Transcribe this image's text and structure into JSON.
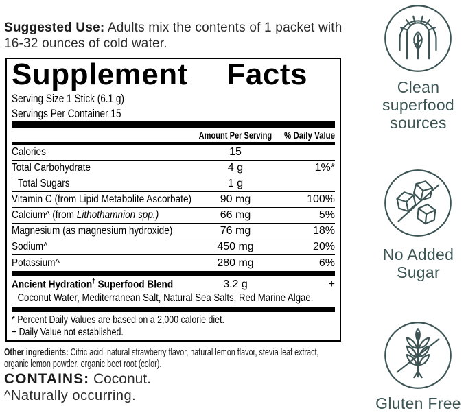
{
  "suggested_use": {
    "label": "Suggested Use:",
    "text": " Adults mix the contents of 1 packet with 16-32 ounces of cold water."
  },
  "facts": {
    "title": "Supplement Facts",
    "serving_size": "Serving Size 1 Stick (6.1 g)",
    "servings_per_container": "Servings Per Container 15",
    "col_amount": "Amount Per Serving",
    "col_dv": "% Daily Value",
    "rows": [
      {
        "name": [
          {
            "t": "Calories"
          }
        ],
        "amount": "15",
        "dv": ""
      },
      {
        "name": [
          {
            "t": "Total Carbohydrate"
          }
        ],
        "amount": "4 g",
        "dv": "1%*"
      },
      {
        "name": [
          {
            "t": "Total Sugars"
          }
        ],
        "amount": "1 g",
        "dv": "",
        "indent": true
      },
      {
        "name": [
          {
            "t": "Vitamin C (from Lipid Metabolite Ascorbate)"
          }
        ],
        "amount": "90 mg",
        "dv": "100%"
      },
      {
        "name": [
          {
            "t": "Calcium^ (from "
          },
          {
            "t": "Lithothamnion spp.)",
            "italic": true
          }
        ],
        "amount": "66 mg",
        "dv": "5%"
      },
      {
        "name": [
          {
            "t": "Magnesium (as magnesium hydroxide)"
          }
        ],
        "amount": "76 mg",
        "dv": "18%"
      },
      {
        "name": [
          {
            "t": "Sodium^"
          }
        ],
        "amount": "450 mg",
        "dv": "20%"
      },
      {
        "name": [
          {
            "t": "Potassium^"
          }
        ],
        "amount": "280 mg",
        "dv": "6%"
      }
    ],
    "blend": {
      "name": [
        {
          "t": "Ancient Hydration"
        },
        {
          "t": "†",
          "sup": true
        },
        {
          "t": " Superfood Blend"
        }
      ],
      "amount": "3.2 g",
      "dv": "+",
      "ingredients": "Coconut Water, Mediterranean Salt, Natural Sea Salts, Red Marine Algae."
    },
    "footnotes": [
      "* Percent Daily Values are based on a 2,000 calorie diet.",
      "+ Daily Value not established."
    ]
  },
  "other_ingredients": {
    "label": "Other ingredients:",
    "text": " Citric acid, natural strawberry flavor, natural lemon flavor, stevia leaf extract, organic lemon powder, organic beet root (color)."
  },
  "contains": {
    "label": "CONTAINS:",
    "text": " Coconut."
  },
  "naturally_occurring": "^Naturally occurring.",
  "features": [
    {
      "icon": "arch-leaf-icon",
      "label": "Clean\nsuperfood\nsources"
    },
    {
      "icon": "no-added-sugar-icon",
      "label": "No Added\nSugar"
    },
    {
      "icon": "gluten-free-icon",
      "label": "Gluten Free"
    }
  ],
  "colors": {
    "icon_accent": "#3d5454",
    "text_primary": "#1c1c1c"
  }
}
